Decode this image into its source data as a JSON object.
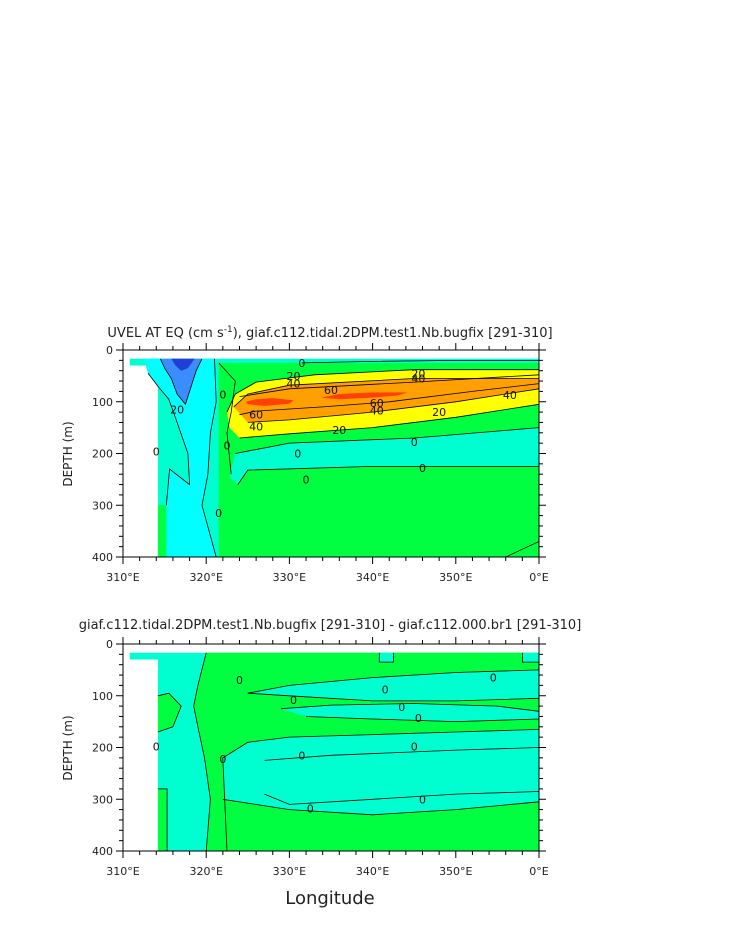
{
  "chart_data": [
    {
      "type": "contour",
      "title_main": "UVEL AT EQ (cm s",
      "title_sup": "-1",
      "title_rest": "), giaf.c112.tidal.2DPM.test1.Nb.bugfix [291-310]",
      "ylabel": "DEPTH (m)",
      "xlabel": "",
      "x_ticks": [
        "310°E",
        "320°E",
        "330°E",
        "340°E",
        "350°E",
        "0°E"
      ],
      "x_values": [
        310,
        320,
        330,
        340,
        350,
        360
      ],
      "xlim": [
        310,
        360
      ],
      "y_ticks": [
        "0",
        "100",
        "200",
        "300",
        "400"
      ],
      "y_values": [
        0,
        100,
        200,
        300,
        400
      ],
      "ylim": [
        0,
        400
      ],
      "y_inverted": true,
      "fill_colors": {
        "neg_strong": "#1f3fd6",
        "neg_medium": "#3a8cff",
        "neg_weak": "#00ffff",
        "neg_near_zero": "#00ffd0",
        "pos_near_zero": "#00ff40",
        "pos_20": "#ffff00",
        "pos_40": "#ffa000",
        "pos_60": "#ff4000"
      },
      "contour_labels": [
        {
          "text": "0",
          "x": 331.5,
          "y": 25
        },
        {
          "text": "20",
          "x": 330.5,
          "y": 50
        },
        {
          "text": "40",
          "x": 330.5,
          "y": 65
        },
        {
          "text": "60",
          "x": 335.0,
          "y": 77
        },
        {
          "text": "20",
          "x": 345.5,
          "y": 45
        },
        {
          "text": "40",
          "x": 345.5,
          "y": 55
        },
        {
          "text": "40",
          "x": 356.5,
          "y": 87
        },
        {
          "text": "60",
          "x": 340.5,
          "y": 102
        },
        {
          "text": "40",
          "x": 340.5,
          "y": 117
        },
        {
          "text": "20",
          "x": 348.0,
          "y": 120
        },
        {
          "text": "60",
          "x": 326.0,
          "y": 125
        },
        {
          "text": "40",
          "x": 326.0,
          "y": 148
        },
        {
          "text": "20",
          "x": 336.0,
          "y": 155
        },
        {
          "text": "0",
          "x": 345.0,
          "y": 178
        },
        {
          "text": "0",
          "x": 331.0,
          "y": 200
        },
        {
          "text": "0",
          "x": 332.0,
          "y": 250
        },
        {
          "text": "0",
          "x": 346.0,
          "y": 228
        },
        {
          "text": "20",
          "x": 316.5,
          "y": 115
        },
        {
          "text": "0",
          "x": 314.0,
          "y": 196
        },
        {
          "text": "0",
          "x": 322.0,
          "y": 86
        },
        {
          "text": "0",
          "x": 322.5,
          "y": 185
        },
        {
          "text": "0",
          "x": 321.5,
          "y": 315
        }
      ]
    },
    {
      "type": "contour",
      "title_main": "giaf.c112.tidal.2DPM.test1.Nb.bugfix [291-310] - giaf.c112.000.br1 [291-310]",
      "ylabel": "DEPTH (m)",
      "xlabel": "Longitude",
      "x_ticks": [
        "310°E",
        "320°E",
        "330°E",
        "340°E",
        "350°E",
        "0°E"
      ],
      "x_values": [
        310,
        320,
        330,
        340,
        350,
        360
      ],
      "xlim": [
        310,
        360
      ],
      "y_ticks": [
        "0",
        "100",
        "200",
        "300",
        "400"
      ],
      "y_values": [
        0,
        100,
        200,
        300,
        400
      ],
      "ylim": [
        0,
        400
      ],
      "y_inverted": true,
      "fill_colors": {
        "neg": "#00ffd0",
        "pos": "#00ff40"
      },
      "contour_labels": [
        {
          "text": "0",
          "x": 324.0,
          "y": 70
        },
        {
          "text": "0",
          "x": 330.5,
          "y": 108
        },
        {
          "text": "0",
          "x": 341.5,
          "y": 88
        },
        {
          "text": "0",
          "x": 343.5,
          "y": 122
        },
        {
          "text": "0",
          "x": 345.5,
          "y": 143
        },
        {
          "text": "0",
          "x": 354.5,
          "y": 65
        },
        {
          "text": "0",
          "x": 314.0,
          "y": 198
        },
        {
          "text": "0",
          "x": 322.0,
          "y": 222
        },
        {
          "text": "0",
          "x": 345.0,
          "y": 198
        },
        {
          "text": "0",
          "x": 331.5,
          "y": 215
        },
        {
          "text": "0",
          "x": 332.5,
          "y": 318
        },
        {
          "text": "0",
          "x": 346.0,
          "y": 300
        }
      ]
    }
  ]
}
